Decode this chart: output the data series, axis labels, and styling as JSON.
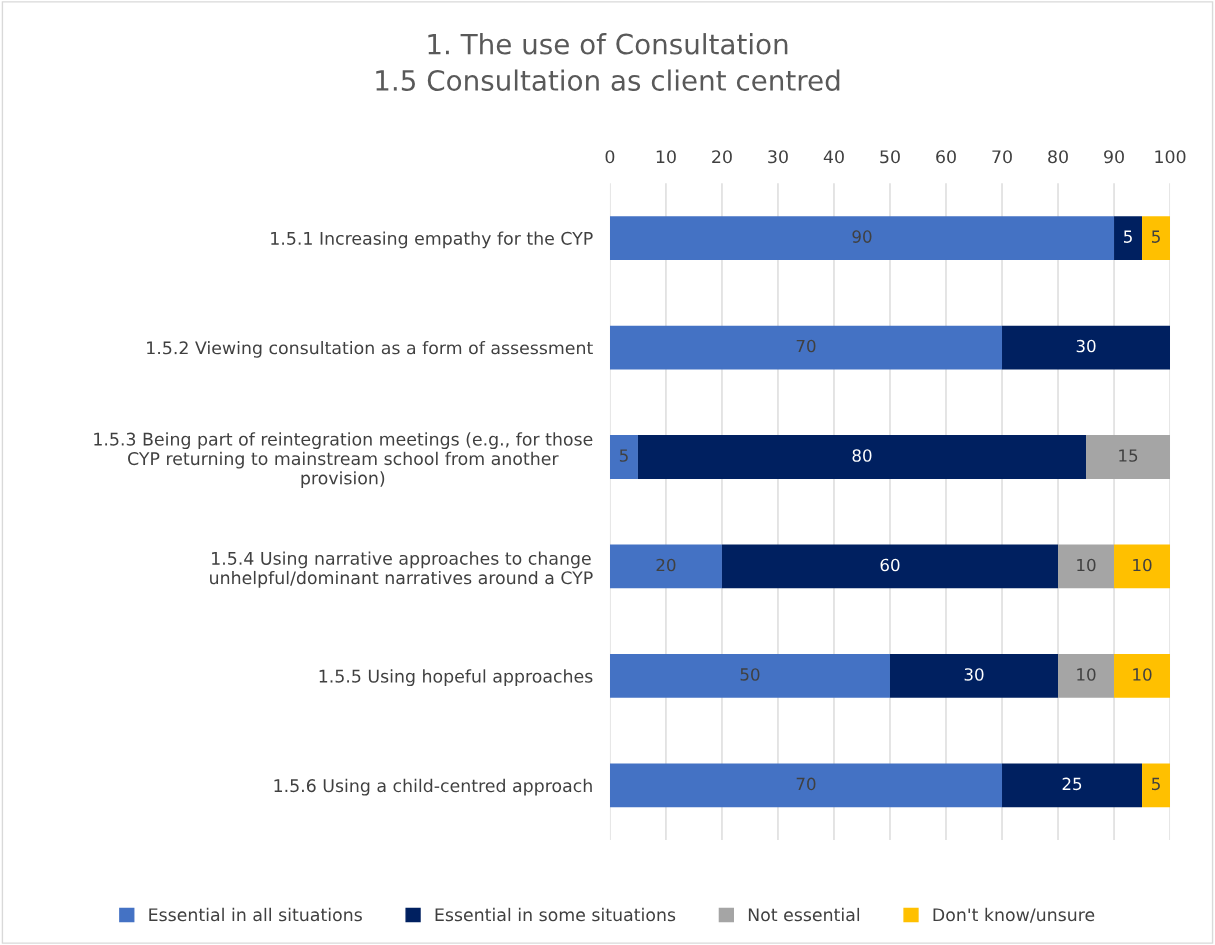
{
  "chart_data": {
    "type": "bar",
    "orientation": "horizontal",
    "stacked": true,
    "title": "1. The use of Consultation\n1.5 Consultation as client centred",
    "categories": [
      "1.5.1 Increasing empathy for the CYP",
      "1.5.2 Viewing consultation as a form of assessment",
      "1.5.3 Being part of reintegration meetings (e.g., for those\nCYP returning to mainstream school from another\nprovision)",
      "1.5.4 Using narrative approaches to change\nunhelpful/dominant narratives around a CYP",
      "1.5.5 Using hopeful approaches",
      "1.5.6 Using a child-centred approach"
    ],
    "series": [
      {
        "name": "Essential in all situations",
        "color": "#4472c4",
        "values": [
          90,
          70,
          5,
          20,
          50,
          70
        ]
      },
      {
        "name": "Essential in some situations",
        "color": "#002060",
        "values": [
          5,
          30,
          80,
          60,
          30,
          25
        ]
      },
      {
        "name": "Not essential",
        "color": "#a5a5a5",
        "values": [
          null,
          null,
          15,
          10,
          10,
          null
        ]
      },
      {
        "name": "Don't know/unsure",
        "color": "#ffc000",
        "values": [
          5,
          null,
          null,
          10,
          10,
          5
        ]
      }
    ],
    "xlim": [
      0,
      100
    ],
    "xticks": [
      0,
      10,
      20,
      30,
      40,
      50,
      60,
      70,
      80,
      90,
      100
    ],
    "grid": "x",
    "legend": "bottom",
    "data_labels": true
  }
}
